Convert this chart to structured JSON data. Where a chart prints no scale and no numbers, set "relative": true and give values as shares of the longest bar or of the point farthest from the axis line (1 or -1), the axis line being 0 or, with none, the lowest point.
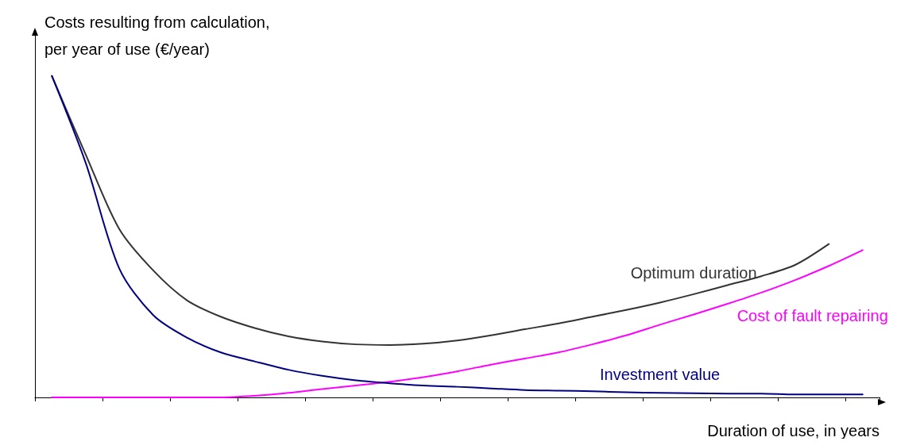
{
  "chart_data": {
    "type": "line",
    "relative": true,
    "xlabel": "Duration of use, in years",
    "ylabel": "Costs resulting from calculation,\nper year of use (€/year)",
    "legend": false,
    "grid": false,
    "marker": "none",
    "line_style": "solid",
    "categories": [
      null,
      null,
      null,
      null,
      null,
      null,
      null,
      null,
      null,
      null,
      null,
      null,
      null,
      null,
      null,
      null,
      null,
      null,
      null,
      null,
      null,
      null,
      null,
      null,
      null
    ],
    "series": [
      {
        "name": "Optimum duration",
        "color": "#333333",
        "values": [
          1.0,
          0.756,
          0.523,
          0.395,
          0.302,
          0.251,
          0.216,
          0.19,
          0.174,
          0.165,
          0.163,
          0.167,
          0.177,
          0.193,
          0.212,
          0.23,
          0.251,
          0.272,
          0.295,
          0.321,
          0.349,
          0.377,
          0.412,
          0.477,
          null
        ]
      },
      {
        "name": "Cost of fault repairing",
        "color": "#ff00ff",
        "values": [
          0,
          0,
          0,
          0,
          0,
          0,
          0.005,
          0.014,
          0.026,
          0.037,
          0.049,
          0.063,
          0.081,
          0.102,
          0.121,
          0.14,
          0.165,
          0.193,
          0.226,
          0.258,
          0.291,
          0.326,
          0.365,
          0.409,
          0.458
        ]
      },
      {
        "name": "Investment value",
        "color": "#000080",
        "values": [
          1.0,
          0.73,
          0.4,
          0.256,
          0.186,
          0.14,
          0.112,
          0.086,
          0.067,
          0.053,
          0.044,
          0.037,
          0.033,
          0.028,
          0.023,
          0.021,
          0.019,
          0.016,
          0.014,
          0.013,
          0.012,
          0.012,
          0.009,
          0.009,
          0.009
        ]
      }
    ]
  }
}
